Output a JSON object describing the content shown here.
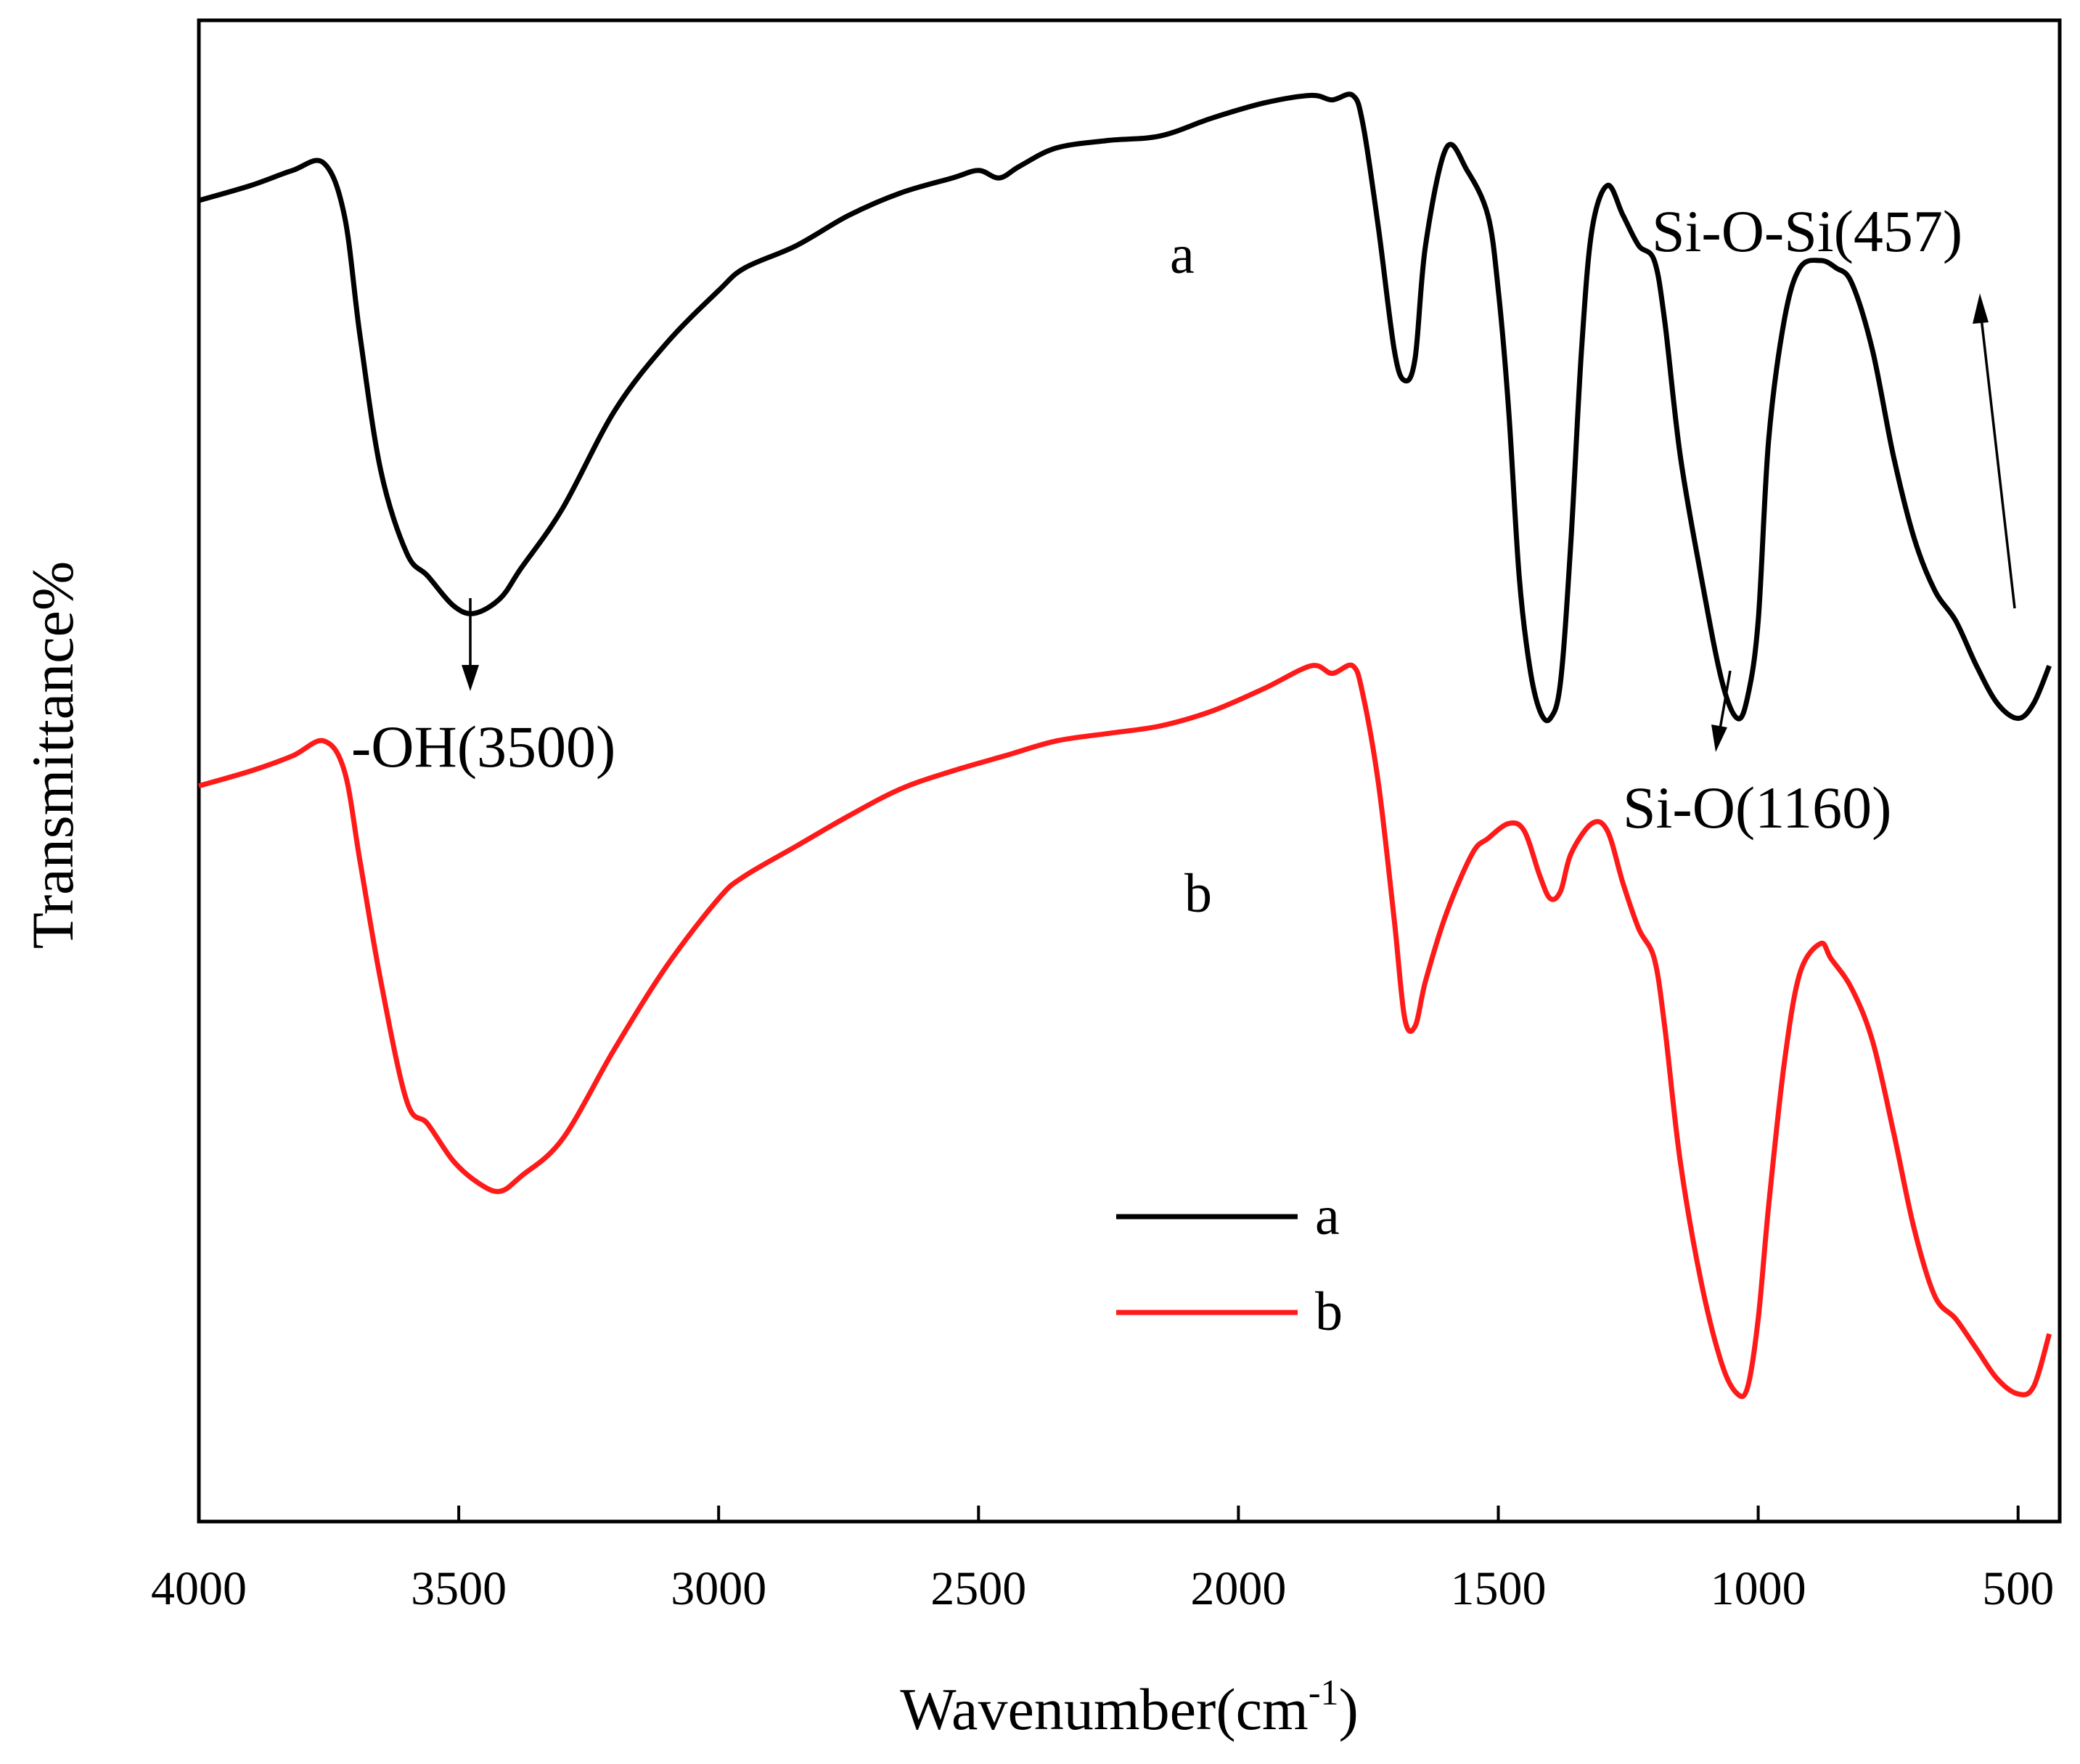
{
  "chart_data": {
    "type": "line",
    "title": "",
    "xlabel": "Wavenumber(cm",
    "xlabel_sup": "-1",
    "xlabel_close": ")",
    "ylabel": "Transmittance%",
    "xlim": [
      4000,
      420
    ],
    "ylim": [
      0,
      100
    ],
    "xticks": [
      4000,
      3500,
      3000,
      2500,
      2000,
      1500,
      1000,
      500
    ],
    "grid": false,
    "legend_position": "lower-center",
    "colors": {
      "a": "#000000",
      "b": "#ff1a1a"
    },
    "series": [
      {
        "name": "a",
        "label": "a",
        "x": [
          4000,
          3900,
          3820,
          3760,
          3720,
          3690,
          3650,
          3600,
          3560,
          3510,
          3470,
          3420,
          3380,
          3300,
          3200,
          3100,
          3000,
          2950,
          2850,
          2750,
          2650,
          2550,
          2500,
          2460,
          2420,
          2350,
          2250,
          2150,
          2050,
          1950,
          1860,
          1820,
          1780,
          1760,
          1730,
          1700,
          1680,
          1660,
          1640,
          1600,
          1560,
          1520,
          1500,
          1480,
          1460,
          1440,
          1420,
          1400,
          1380,
          1360,
          1340,
          1320,
          1290,
          1260,
          1230,
          1200,
          1180,
          1150,
          1110,
          1070,
          1040,
          1020,
          1000,
          980,
          950,
          920,
          880,
          850,
          820,
          780,
          740,
          700,
          660,
          620,
          580,
          540,
          500,
          470,
          440
        ],
        "y": [
          88.0,
          89.0,
          90.0,
          90.5,
          87.0,
          79.0,
          70.0,
          64.5,
          63.0,
          61.0,
          60.5,
          61.5,
          63.5,
          67.5,
          74.0,
          78.5,
          82.0,
          83.5,
          85.0,
          87.0,
          88.5,
          89.5,
          90.0,
          89.5,
          90.3,
          91.5,
          92.0,
          92.3,
          93.5,
          94.5,
          95.0,
          94.7,
          95.0,
          93.0,
          86.0,
          78.0,
          76.0,
          77.5,
          85.0,
          91.5,
          90.0,
          87.0,
          82.0,
          74.0,
          63.0,
          57.0,
          54.0,
          53.5,
          56.0,
          65.5,
          78.0,
          86.0,
          89.0,
          87.0,
          85.0,
          84.0,
          80.0,
          71.0,
          63.0,
          56.0,
          53.5,
          55.0,
          60.0,
          72.0,
          80.0,
          83.5,
          84.0,
          83.5,
          82.5,
          78.0,
          71.0,
          65.5,
          62.0,
          60.0,
          57.0,
          54.5,
          53.5,
          54.5,
          57.0
        ]
      },
      {
        "name": "b",
        "label": "b",
        "x": [
          4000,
          3900,
          3820,
          3760,
          3720,
          3690,
          3650,
          3600,
          3560,
          3510,
          3460,
          3420,
          3380,
          3300,
          3200,
          3100,
          3000,
          2950,
          2850,
          2750,
          2650,
          2550,
          2450,
          2350,
          2250,
          2150,
          2050,
          1950,
          1860,
          1820,
          1780,
          1760,
          1730,
          1700,
          1680,
          1660,
          1640,
          1600,
          1550,
          1520,
          1480,
          1450,
          1420,
          1400,
          1380,
          1360,
          1320,
          1290,
          1260,
          1230,
          1200,
          1180,
          1150,
          1110,
          1070,
          1040,
          1020,
          1000,
          980,
          950,
          920,
          880,
          860,
          820,
          780,
          740,
          700,
          660,
          620,
          580,
          540,
          500,
          470,
          440
        ],
        "y": [
          49.0,
          50.0,
          51.0,
          52.0,
          50.0,
          44.0,
          36.0,
          28.0,
          26.5,
          24.0,
          22.5,
          22.0,
          23.0,
          25.5,
          31.5,
          37.0,
          41.5,
          43.0,
          45.0,
          47.0,
          48.8,
          50.0,
          51.0,
          52.0,
          52.5,
          53.0,
          54.0,
          55.5,
          57.0,
          56.5,
          57.0,
          55.0,
          49.0,
          40.0,
          33.5,
          33.0,
          36.0,
          40.5,
          44.5,
          45.5,
          46.5,
          46.0,
          43.0,
          41.5,
          42.0,
          44.5,
          46.5,
          46.0,
          42.5,
          39.5,
          37.5,
          33.0,
          24.0,
          16.0,
          10.5,
          8.5,
          9.0,
          13.5,
          21.0,
          30.5,
          36.5,
          38.5,
          37.5,
          35.5,
          32.0,
          26.0,
          19.5,
          15.0,
          13.5,
          11.5,
          9.5,
          8.5,
          9.0,
          12.5
        ]
      }
    ],
    "annotations": [
      {
        "text": "-OH(3500)"
      },
      {
        "text": "Si-O(1160)"
      },
      {
        "text": "Si-O-Si(457)"
      }
    ],
    "curve_labels": [
      "a",
      "b"
    ]
  }
}
